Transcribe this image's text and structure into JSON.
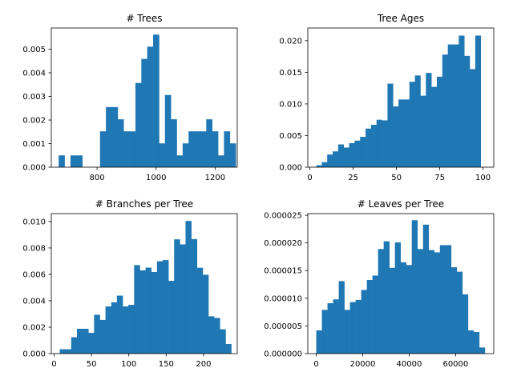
{
  "chart_data": [
    {
      "type": "bar",
      "title": "# Trees",
      "xlabel": "",
      "ylabel": "",
      "xlim": [
        645,
        1275
      ],
      "ylim": [
        0,
        0.0059
      ],
      "xticks": [
        800,
        1000,
        1200
      ],
      "yticks": [
        0.0,
        0.001,
        0.002,
        0.003,
        0.004,
        0.005
      ],
      "ytick_decimals": 3,
      "bins": [
        [
          670,
          690,
          0.0005
        ],
        [
          690,
          710,
          0.0
        ],
        [
          710,
          730,
          0.0005
        ],
        [
          730,
          750,
          0.0005
        ],
        [
          750,
          770,
          0.0
        ],
        [
          770,
          790,
          0.0
        ],
        [
          790,
          810,
          0.0
        ],
        [
          810,
          830,
          0.00152
        ],
        [
          830,
          850,
          0.00255
        ],
        [
          850,
          870,
          0.00255
        ],
        [
          870,
          890,
          0.00203
        ],
        [
          890,
          910,
          0.00152
        ],
        [
          910,
          930,
          0.00152
        ],
        [
          930,
          950,
          0.00357
        ],
        [
          950,
          970,
          0.00459
        ],
        [
          970,
          990,
          0.00511
        ],
        [
          990,
          1010,
          0.00562
        ],
        [
          1010,
          1030,
          0.00101
        ],
        [
          1030,
          1050,
          0.00306
        ],
        [
          1050,
          1070,
          0.00203
        ],
        [
          1070,
          1090,
          0.0005
        ],
        [
          1090,
          1110,
          0.00101
        ],
        [
          1110,
          1130,
          0.00152
        ],
        [
          1130,
          1150,
          0.00152
        ],
        [
          1150,
          1170,
          0.00152
        ],
        [
          1170,
          1190,
          0.00203
        ],
        [
          1190,
          1210,
          0.00152
        ],
        [
          1210,
          1230,
          0.0005
        ],
        [
          1230,
          1250,
          0.00152
        ],
        [
          1250,
          1270,
          0.00101
        ]
      ]
    },
    {
      "type": "bar",
      "title": "Tree Ages",
      "xlabel": "",
      "ylabel": "",
      "xlim": [
        -1.2,
        106.2
      ],
      "ylim": [
        0,
        0.022
      ],
      "xticks": [
        0,
        25,
        50,
        75,
        100
      ],
      "yticks": [
        0.0,
        0.005,
        0.01,
        0.015,
        0.02
      ],
      "ytick_decimals": 3,
      "bins": [
        [
          3.67,
          6.83,
          0.0003
        ],
        [
          6.83,
          10.0,
          0.0008
        ],
        [
          10.0,
          13.17,
          0.002
        ],
        [
          13.17,
          16.33,
          0.0025
        ],
        [
          16.33,
          19.5,
          0.0036
        ],
        [
          19.5,
          22.67,
          0.0031
        ],
        [
          22.67,
          25.83,
          0.0038
        ],
        [
          25.83,
          29.0,
          0.0042
        ],
        [
          29.0,
          32.17,
          0.0048
        ],
        [
          32.17,
          35.33,
          0.0061
        ],
        [
          35.33,
          38.5,
          0.0067
        ],
        [
          38.5,
          41.67,
          0.0075
        ],
        [
          41.67,
          44.83,
          0.0074
        ],
        [
          44.83,
          48.0,
          0.0132
        ],
        [
          48.0,
          51.17,
          0.0096
        ],
        [
          51.17,
          54.33,
          0.0107
        ],
        [
          54.33,
          57.5,
          0.0107
        ],
        [
          57.5,
          60.67,
          0.0135
        ],
        [
          60.67,
          63.83,
          0.0145
        ],
        [
          63.83,
          67.0,
          0.0113
        ],
        [
          67.0,
          70.17,
          0.0149
        ],
        [
          70.17,
          73.33,
          0.0127
        ],
        [
          73.33,
          76.5,
          0.0143
        ],
        [
          76.5,
          79.67,
          0.0178
        ],
        [
          79.67,
          82.83,
          0.0194
        ],
        [
          82.83,
          86.0,
          0.0194
        ],
        [
          86.0,
          89.17,
          0.0208
        ],
        [
          89.17,
          92.33,
          0.0176
        ],
        [
          92.33,
          95.5,
          0.0155
        ],
        [
          95.5,
          98.67,
          0.0208
        ]
      ]
    },
    {
      "type": "bar",
      "title": "# Branches per Tree",
      "xlabel": "",
      "ylabel": "",
      "xlim": [
        -3.7,
        245.1
      ],
      "ylim": [
        0,
        0.0106
      ],
      "xticks": [
        0,
        50,
        100,
        150,
        200
      ],
      "yticks": [
        0.0,
        0.002,
        0.004,
        0.006,
        0.008,
        0.01
      ],
      "ytick_decimals": 3,
      "bins": [
        [
          7.6,
          15.3,
          0.00033
        ],
        [
          15.3,
          22.9,
          0.00033
        ],
        [
          22.9,
          30.6,
          0.00124
        ],
        [
          30.6,
          38.2,
          0.00188
        ],
        [
          38.2,
          45.9,
          0.00188
        ],
        [
          45.9,
          53.5,
          0.00157
        ],
        [
          53.5,
          61.2,
          0.00294
        ],
        [
          61.2,
          68.8,
          0.00255
        ],
        [
          68.8,
          76.5,
          0.00357
        ],
        [
          76.5,
          84.1,
          0.00388
        ],
        [
          84.1,
          91.8,
          0.00439
        ],
        [
          91.8,
          99.4,
          0.00357
        ],
        [
          99.4,
          107.1,
          0.00369
        ],
        [
          107.1,
          114.7,
          0.0067
        ],
        [
          114.7,
          122.4,
          0.0063
        ],
        [
          122.4,
          130.0,
          0.00651
        ],
        [
          130.0,
          137.7,
          0.00618
        ],
        [
          137.7,
          145.3,
          0.00699
        ],
        [
          145.3,
          153.0,
          0.00708
        ],
        [
          153.0,
          160.6,
          0.00551
        ],
        [
          160.6,
          168.3,
          0.00865
        ],
        [
          168.3,
          175.9,
          0.00827
        ],
        [
          175.9,
          183.6,
          0.01004
        ],
        [
          183.6,
          191.2,
          0.00867
        ],
        [
          191.2,
          198.9,
          0.0065
        ],
        [
          198.9,
          206.5,
          0.00597
        ],
        [
          206.5,
          214.2,
          0.00282
        ],
        [
          214.2,
          221.8,
          0.0027
        ],
        [
          221.8,
          229.5,
          0.00184
        ],
        [
          229.5,
          237.1,
          0.00073
        ]
      ]
    },
    {
      "type": "bar",
      "title": "# Leaves per Tree",
      "xlabel": "",
      "ylabel": "",
      "xlim": [
        -3640,
        76440
      ],
      "ylim": [
        0,
        2.53e-05
      ],
      "xticks": [
        0,
        20000,
        40000,
        60000
      ],
      "yticks": [
        0.0,
        5e-06,
        1e-05,
        1.5e-05,
        2e-05,
        2.5e-05
      ],
      "ytick_decimals": 6,
      "bins": [
        [
          0,
          2420,
          4.2e-06
        ],
        [
          2420,
          4840,
          7.9e-06
        ],
        [
          4840,
          7260,
          9.1e-06
        ],
        [
          7260,
          9680,
          9.8e-06
        ],
        [
          9680,
          12100,
          1.31e-05
        ],
        [
          12100,
          14520,
          7.9e-06
        ],
        [
          14520,
          16940,
          9.3e-06
        ],
        [
          16940,
          19360,
          9.7e-06
        ],
        [
          19360,
          21780,
          1.15e-05
        ],
        [
          21780,
          24200,
          1.33e-05
        ],
        [
          24200,
          26620,
          1.41e-05
        ],
        [
          26620,
          29040,
          1.89e-05
        ],
        [
          29040,
          31460,
          2.03e-05
        ],
        [
          31460,
          33880,
          1.55e-05
        ],
        [
          33880,
          36300,
          2.01e-05
        ],
        [
          36300,
          38720,
          1.65e-05
        ],
        [
          38720,
          41140,
          1.6e-05
        ],
        [
          41140,
          43560,
          2.41e-05
        ],
        [
          43560,
          45980,
          1.89e-05
        ],
        [
          45980,
          48400,
          2.33e-05
        ],
        [
          48400,
          50820,
          1.87e-05
        ],
        [
          50820,
          53240,
          1.83e-05
        ],
        [
          53240,
          55660,
          1.96e-05
        ],
        [
          55660,
          58080,
          1.96e-05
        ],
        [
          58080,
          60500,
          1.56e-05
        ],
        [
          60500,
          62920,
          1.48e-05
        ],
        [
          62920,
          65340,
          1.07e-05
        ],
        [
          65340,
          67760,
          4.2e-06
        ],
        [
          67760,
          70180,
          3.9e-06
        ],
        [
          70180,
          72600,
          1.1e-06
        ]
      ]
    }
  ]
}
